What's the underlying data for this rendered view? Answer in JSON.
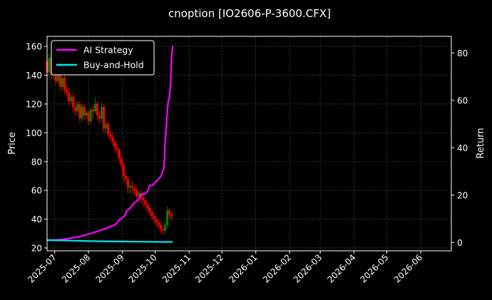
{
  "chart_data": {
    "type": "line",
    "title": "cnoption [IO2606-P-3600.CFX]",
    "ylabel_left": "Price",
    "ylabel_right": "Return",
    "ylim_left": [
      18,
      167
    ],
    "ylim_right": [
      -3.5,
      87
    ],
    "left_ticks": [
      20,
      40,
      60,
      80,
      100,
      120,
      140,
      160
    ],
    "right_ticks": [
      0,
      20,
      40,
      60,
      80
    ],
    "x_range": [
      "2025-06-24",
      "2026-06-29"
    ],
    "x_ticks": [
      "2025-07",
      "2025-08",
      "2025-09",
      "2025-10",
      "2025-11",
      "2025-12",
      "2026-01",
      "2026-02",
      "2026-03",
      "2026-04",
      "2026-05",
      "2026-06"
    ],
    "grid": true,
    "legend_position": "upper-left",
    "colors": {
      "background": "#000000",
      "up": "#008000",
      "down": "#ff0000",
      "ai": "#ff00ff",
      "bh": "#00e5ee",
      "grid": "#555555",
      "frame": "#ffffff"
    },
    "series": [
      {
        "name": "AI Strategy",
        "axis": "right",
        "x": [
          "2025-06-24",
          "2025-07-01",
          "2025-07-08",
          "2025-07-15",
          "2025-07-22",
          "2025-07-29",
          "2025-08-05",
          "2025-08-12",
          "2025-08-19",
          "2025-08-26",
          "2025-08-29",
          "2025-09-03",
          "2025-09-05",
          "2025-09-08",
          "2025-09-10",
          "2025-09-12",
          "2025-09-15",
          "2025-09-18",
          "2025-09-22",
          "2025-09-24",
          "2025-09-26",
          "2025-09-29",
          "2025-10-01",
          "2025-10-06",
          "2025-10-09",
          "2025-10-10",
          "2025-10-11",
          "2025-10-12",
          "2025-10-13",
          "2025-10-14",
          "2025-10-15",
          "2025-10-16",
          "2025-10-17"
        ],
        "y": [
          1,
          1.1,
          1.3,
          1.8,
          2.3,
          3.2,
          4.1,
          5.2,
          6.3,
          7.7,
          9.5,
          11.2,
          13.5,
          14.5,
          15.7,
          16.8,
          17.7,
          20.3,
          20.7,
          21.7,
          24.1,
          24.2,
          25.4,
          27.8,
          31.5,
          42.0,
          48.0,
          55.0,
          60.0,
          61.0,
          67.0,
          78.0,
          83.0
        ]
      },
      {
        "name": "Buy-and-Hold",
        "axis": "right",
        "x": [
          "2025-06-24",
          "2025-07-15",
          "2025-08-05",
          "2025-08-26",
          "2025-09-16",
          "2025-10-07",
          "2025-10-17"
        ],
        "y": [
          1.0,
          0.8,
          0.6,
          0.45,
          0.35,
          0.25,
          0.25
        ]
      },
      {
        "name": "Price",
        "axis": "left",
        "kind": "candlestick",
        "x": [
          "2025-06-24",
          "2025-06-26",
          "2025-06-28",
          "2025-06-30",
          "2025-07-02",
          "2025-07-04",
          "2025-07-06",
          "2025-07-08",
          "2025-07-10",
          "2025-07-12",
          "2025-07-14",
          "2025-07-16",
          "2025-07-18",
          "2025-07-20",
          "2025-07-22",
          "2025-07-24",
          "2025-07-26",
          "2025-07-28",
          "2025-07-30",
          "2025-08-01",
          "2025-08-03",
          "2025-08-05",
          "2025-08-07",
          "2025-08-09",
          "2025-08-11",
          "2025-08-13",
          "2025-08-15",
          "2025-08-17",
          "2025-08-19",
          "2025-08-21",
          "2025-08-23",
          "2025-08-25",
          "2025-08-27",
          "2025-08-29",
          "2025-08-31",
          "2025-09-02",
          "2025-09-04",
          "2025-09-06",
          "2025-09-08",
          "2025-09-10",
          "2025-09-12",
          "2025-09-14",
          "2025-09-16",
          "2025-09-18",
          "2025-09-20",
          "2025-09-22",
          "2025-09-24",
          "2025-09-26",
          "2025-09-28",
          "2025-09-30",
          "2025-10-02",
          "2025-10-04",
          "2025-10-06",
          "2025-10-08",
          "2025-10-10",
          "2025-10-12",
          "2025-10-14",
          "2025-10-16"
        ],
        "open": [
          150,
          142,
          152,
          140,
          145,
          136,
          140,
          132,
          138,
          130,
          128,
          122,
          125,
          118,
          115,
          120,
          110,
          118,
          112,
          114,
          108,
          116,
          115,
          120,
          112,
          110,
          118,
          103,
          106,
          99,
          97,
          94,
          90,
          88,
          82,
          78,
          70,
          68,
          62,
          63,
          62,
          60,
          56,
          58,
          55,
          53,
          50,
          48,
          45,
          42,
          40,
          38,
          36,
          33,
          32,
          36,
          46,
          43
        ],
        "close": [
          142,
          152,
          140,
          145,
          136,
          140,
          132,
          138,
          130,
          128,
          122,
          125,
          118,
          115,
          120,
          110,
          118,
          112,
          114,
          108,
          116,
          115,
          120,
          112,
          110,
          118,
          103,
          106,
          99,
          97,
          94,
          90,
          88,
          82,
          78,
          70,
          68,
          62,
          63,
          62,
          60,
          56,
          58,
          55,
          53,
          50,
          48,
          45,
          42,
          40,
          38,
          36,
          33,
          32,
          36,
          46,
          43,
          42
        ],
        "high": [
          158,
          155,
          157,
          147,
          150,
          141,
          143,
          139,
          141,
          133,
          131,
          127,
          128,
          121,
          122,
          122,
          120,
          120,
          116,
          116,
          118,
          119,
          125,
          122,
          115,
          121,
          120,
          108,
          108,
          102,
          100,
          96,
          92,
          90,
          84,
          80,
          72,
          70,
          65,
          66,
          64,
          62,
          60,
          60,
          57,
          55,
          52,
          50,
          47,
          44,
          42,
          40,
          38,
          35,
          38,
          49,
          48,
          45
        ],
        "low": [
          138,
          139,
          137,
          137,
          133,
          134,
          129,
          130,
          127,
          125,
          119,
          120,
          114,
          112,
          112,
          107,
          108,
          109,
          110,
          105,
          106,
          110,
          113,
          109,
          107,
          107,
          100,
          100,
          96,
          94,
          91,
          87,
          85,
          79,
          75,
          66,
          65,
          58,
          58,
          58,
          56,
          52,
          53,
          51,
          49,
          47,
          44,
          42,
          39,
          37,
          35,
          33,
          30,
          29,
          30,
          33,
          40,
          39
        ]
      }
    ]
  },
  "legend": {
    "ai_label": "AI Strategy",
    "bh_label": "Buy-and-Hold"
  }
}
